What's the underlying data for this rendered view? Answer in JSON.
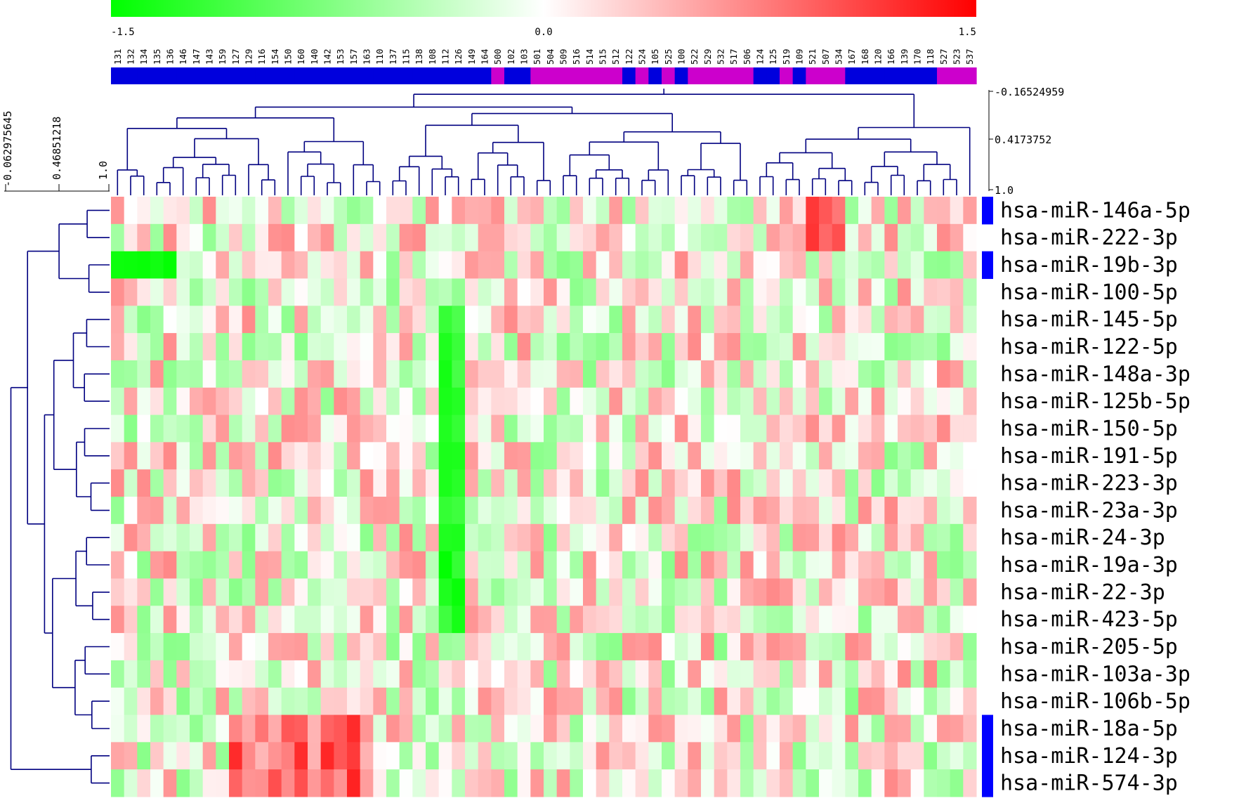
{
  "chart_data": {
    "type": "heatmap",
    "color_scale": {
      "min": -1.5,
      "mid": 0.0,
      "max": 1.5,
      "tick_labels": [
        "-1.5",
        "0.0",
        "1.5"
      ],
      "low_color": "#00ff00",
      "mid_color": "#ffffff",
      "high_color": "#ff0000"
    },
    "columns": [
      "131",
      "132",
      "134",
      "135",
      "136",
      "146",
      "147",
      "143",
      "159",
      "127",
      "129",
      "116",
      "154",
      "150",
      "160",
      "140",
      "142",
      "153",
      "157",
      "163",
      "110",
      "137",
      "115",
      "138",
      "108",
      "112",
      "126",
      "149",
      "164",
      "500",
      "102",
      "103",
      "501",
      "504",
      "509",
      "516",
      "514",
      "515",
      "512",
      "122",
      "524",
      "105",
      "525",
      "100",
      "522",
      "529",
      "532",
      "517",
      "506",
      "124",
      "125",
      "519",
      "109",
      "521",
      "507",
      "534",
      "167",
      "168",
      "120",
      "166",
      "139",
      "170",
      "118",
      "527",
      "523",
      "537"
    ],
    "column_groups": [
      "blue",
      "blue",
      "blue",
      "blue",
      "blue",
      "blue",
      "blue",
      "blue",
      "blue",
      "blue",
      "blue",
      "blue",
      "blue",
      "blue",
      "blue",
      "blue",
      "blue",
      "blue",
      "blue",
      "blue",
      "blue",
      "blue",
      "blue",
      "blue",
      "blue",
      "blue",
      "blue",
      "blue",
      "blue",
      "magenta",
      "blue",
      "blue",
      "magenta",
      "magenta",
      "magenta",
      "magenta",
      "magenta",
      "magenta",
      "magenta",
      "blue",
      "magenta",
      "blue",
      "magenta",
      "blue",
      "magenta",
      "magenta",
      "magenta",
      "magenta",
      "magenta",
      "blue",
      "blue",
      "magenta",
      "blue",
      "magenta",
      "magenta",
      "magenta",
      "blue",
      "blue",
      "blue",
      "blue",
      "blue",
      "blue",
      "blue",
      "magenta",
      "magenta",
      "magenta"
    ],
    "group_colors": {
      "blue": "#0000dd",
      "magenta": "#cc00cc"
    },
    "rows": [
      "hsa-miR-146a-5p",
      "hsa-miR-222-3p",
      "hsa-miR-19b-3p",
      "hsa-miR-100-5p",
      "hsa-miR-145-5p",
      "hsa-miR-122-5p",
      "hsa-miR-148a-3p",
      "hsa-miR-125b-5p",
      "hsa-miR-150-5p",
      "hsa-miR-191-5p",
      "hsa-miR-223-3p",
      "hsa-miR-23a-3p",
      "hsa-miR-24-3p",
      "hsa-miR-19a-3p",
      "hsa-miR-22-3p",
      "hsa-miR-423-5p",
      "hsa-miR-205-5p",
      "hsa-miR-103a-3p",
      "hsa-miR-106b-5p",
      "hsa-miR-18a-5p",
      "hsa-miR-124-3p",
      "hsa-miR-574-3p"
    ],
    "row_markers": [
      true,
      false,
      true,
      false,
      false,
      false,
      false,
      false,
      false,
      false,
      false,
      false,
      false,
      false,
      false,
      false,
      false,
      false,
      false,
      true,
      true,
      true
    ],
    "row_marker_color": "#0000ff",
    "column_dendrogram_scale": [
      "-0.16524959",
      "0.4173752",
      "1.0"
    ],
    "row_dendrogram_scale": [
      "-0.062975645",
      "0.46851218",
      "1.0"
    ],
    "dendrogram_color": "#000080"
  }
}
